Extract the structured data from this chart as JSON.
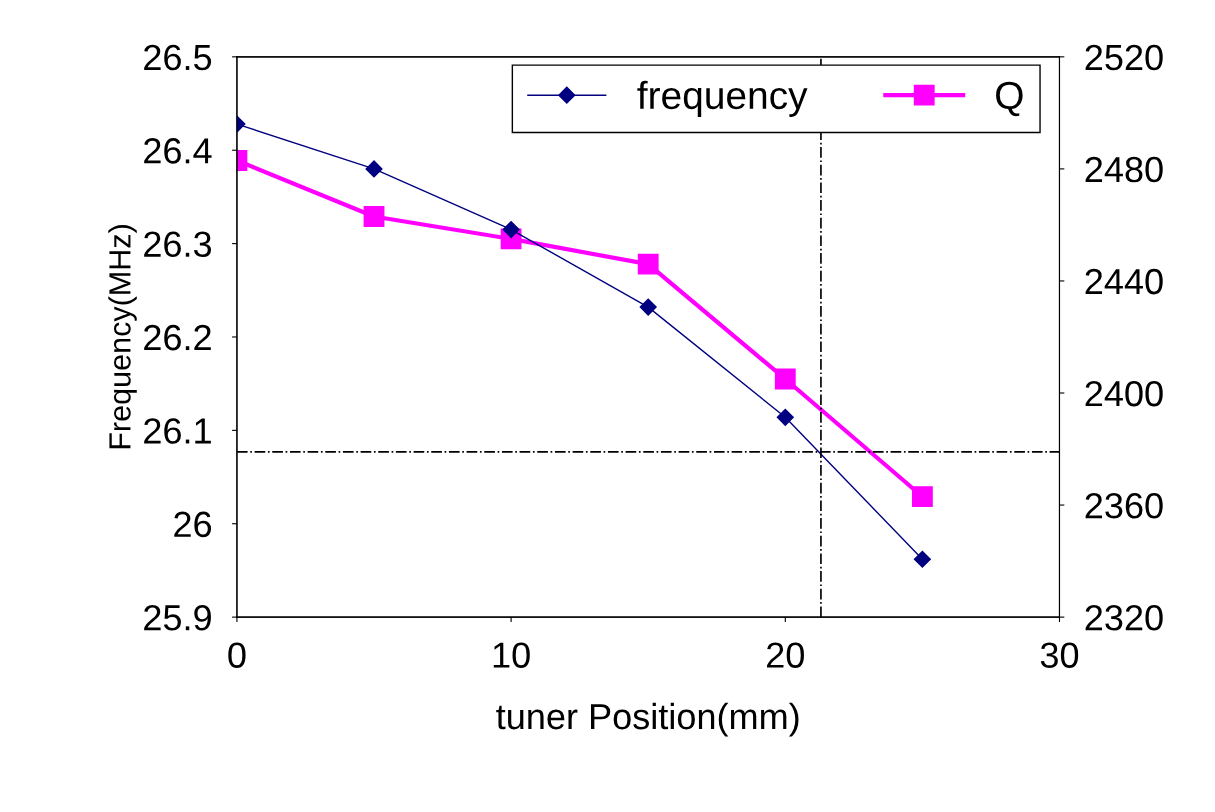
{
  "chart_data": {
    "type": "line",
    "xlabel": "tuner Position(mm)",
    "ylabel": "Frequency(MHz)",
    "x": [
      0,
      5,
      10,
      15,
      20,
      25
    ],
    "series": [
      {
        "name": "frequency",
        "color": "#000080",
        "marker": "diamond",
        "values": [
          26.428,
          26.38,
          26.315,
          26.232,
          26.114,
          25.962
        ]
      },
      {
        "name": "Q",
        "color": "#ff00ff",
        "marker": "square",
        "axis": "y2",
        "values": [
          2483,
          2463,
          2455,
          2446,
          2405,
          2363
        ]
      }
    ],
    "xlim": [
      0,
      30
    ],
    "xticks": [
      0,
      10,
      20,
      30
    ],
    "ylim": [
      25.9,
      26.5
    ],
    "yticks": [
      {
        "value": 25.9,
        "label": "25.9"
      },
      {
        "value": 26.0,
        "label": "26"
      },
      {
        "value": 26.1,
        "label": "26.1"
      },
      {
        "value": 26.2,
        "label": "26.2"
      },
      {
        "value": 26.3,
        "label": "26.3"
      },
      {
        "value": 26.4,
        "label": "26.4"
      },
      {
        "value": 26.5,
        "label": "26.5"
      }
    ],
    "y2lim": [
      2320,
      2520
    ],
    "y2ticks": [
      2320,
      2360,
      2400,
      2440,
      2480,
      2520
    ],
    "ref_lines": [
      {
        "axis": "y",
        "value": 26.077,
        "color": "#000000",
        "line_style": "dashdot"
      },
      {
        "axis": "x",
        "value": 21.3,
        "color": "#000000",
        "line_style": "dashdot"
      }
    ],
    "legend": "top right",
    "grid": false
  }
}
